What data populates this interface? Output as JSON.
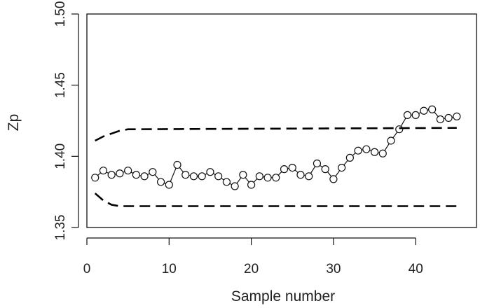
{
  "chart_data": {
    "type": "line",
    "title": "",
    "xlabel": "Sample number",
    "ylabel": "Zp",
    "xlim": [
      0,
      47.4
    ],
    "ylim": [
      1.35,
      1.5
    ],
    "xticks": [
      0,
      10,
      20,
      30,
      40
    ],
    "yticks": [
      1.35,
      1.4,
      1.45,
      1.5
    ],
    "ytick_labels": [
      "1.35",
      "1.40",
      "1.45",
      "1.50"
    ],
    "grid": false,
    "series": [
      {
        "style": "solid-line-open-circles",
        "x": [
          1,
          2,
          3,
          4,
          5,
          6,
          7,
          8,
          9,
          10,
          11,
          12,
          13,
          14,
          15,
          16,
          17,
          18,
          19,
          20,
          21,
          22,
          23,
          24,
          25,
          26,
          27,
          28,
          29,
          30,
          31,
          32,
          33,
          34,
          35,
          36,
          37,
          38,
          39,
          40,
          41,
          42,
          43,
          44,
          45
        ],
        "y": [
          1.385,
          1.39,
          1.387,
          1.388,
          1.39,
          1.387,
          1.386,
          1.389,
          1.382,
          1.38,
          1.394,
          1.387,
          1.386,
          1.386,
          1.389,
          1.386,
          1.382,
          1.379,
          1.387,
          1.38,
          1.386,
          1.385,
          1.385,
          1.391,
          1.392,
          1.387,
          1.386,
          1.395,
          1.391,
          1.384,
          1.392,
          1.399,
          1.404,
          1.405,
          1.403,
          1.402,
          1.411,
          1.419,
          1.429,
          1.429,
          1.432,
          1.433,
          1.426,
          1.427,
          1.428
        ]
      },
      {
        "style": "dashed-upper-limit",
        "x": [
          1,
          2,
          3,
          4,
          5,
          45
        ],
        "y": [
          1.411,
          1.414,
          1.416,
          1.418,
          1.419,
          1.42
        ]
      },
      {
        "style": "dashed-lower-limit",
        "x": [
          1,
          2,
          3,
          4,
          5,
          45
        ],
        "y": [
          1.374,
          1.369,
          1.366,
          1.365,
          1.365,
          1.365
        ]
      }
    ]
  }
}
